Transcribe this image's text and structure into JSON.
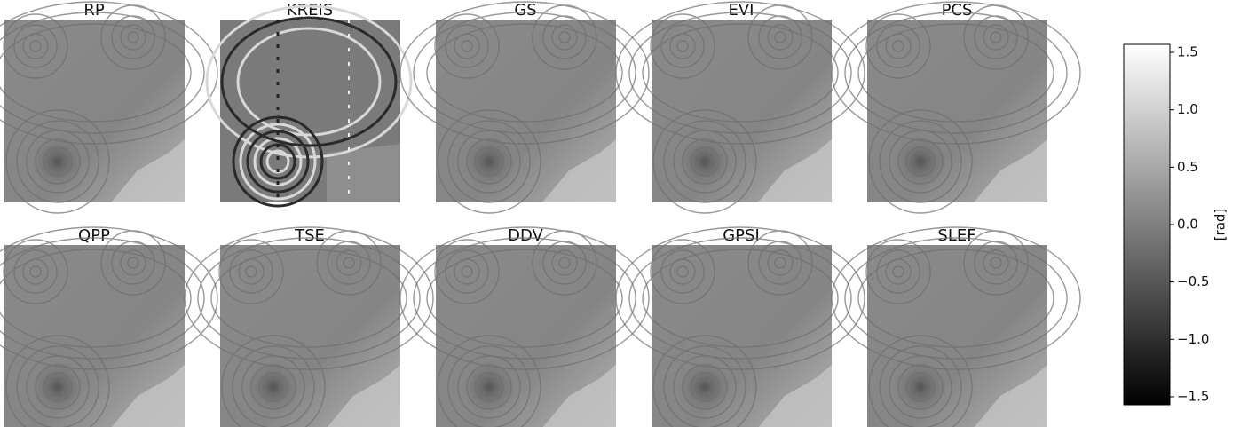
{
  "chart_data": {
    "type": "image_grid",
    "panels": [
      "RP",
      "KREIS",
      "GS",
      "EVI",
      "PCS",
      "QPP",
      "TSE",
      "DDV",
      "GPSI",
      "SLEF"
    ],
    "colorbar": {
      "label": "[rad]",
      "ylim": [
        -1.57,
        1.57
      ],
      "yticks": [
        1.5,
        {
          "value": 1.0,
          "label": "1.0"
        },
        0.5,
        {
          "value": 0.0,
          "label": "0.0"
        },
        {
          "value": -0.5,
          "label": "−0.5"
        },
        {
          "value": -1.0,
          "label": "−1.0"
        },
        {
          "value": -1.5,
          "label": "−1.5"
        }
      ],
      "colors": [
        "#ffffff",
        "#000000"
      ]
    }
  }
}
